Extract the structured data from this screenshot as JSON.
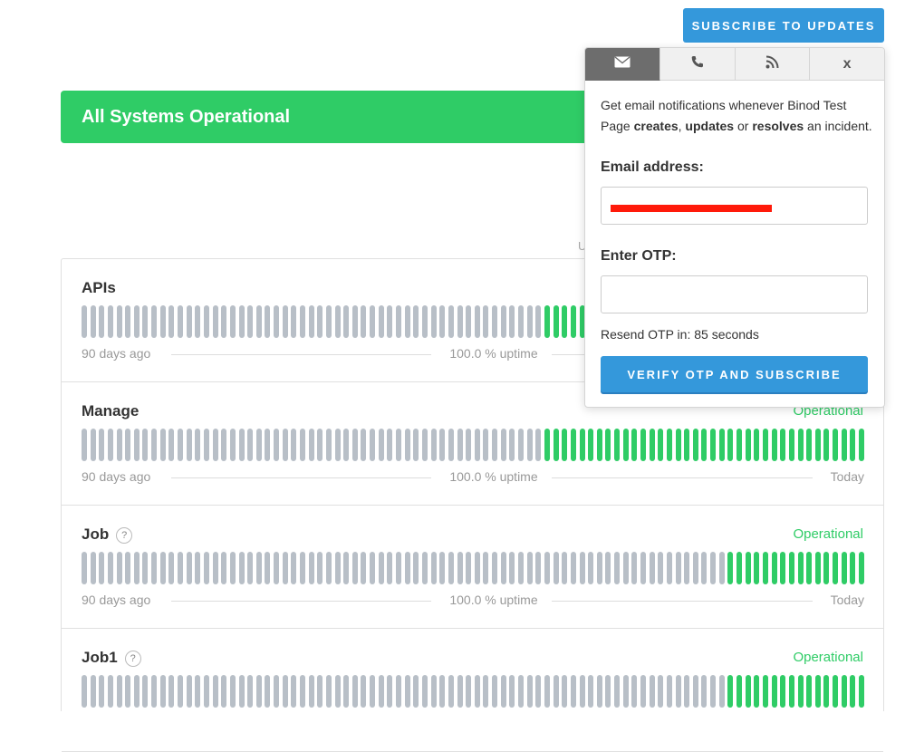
{
  "header": {
    "subscribe_label": "SUBSCRIBE TO UPDATES"
  },
  "banner": {
    "text": "All Systems Operational"
  },
  "uptime_hint": "U",
  "colors": {
    "operational": "#2fcc66",
    "no_data": "#b8bfc7",
    "accent": "#3498db",
    "active_tab": "#6d6d6d"
  },
  "components": [
    {
      "name": "APIs",
      "status": "",
      "has_help": false,
      "legend_left": "90 days ago",
      "legend_mid": "100.0 % uptime",
      "legend_right": "",
      "total_bars": 90,
      "nodata_bars": 53
    },
    {
      "name": "Manage",
      "status": "Operational",
      "has_help": false,
      "legend_left": "90 days ago",
      "legend_mid": "100.0 % uptime",
      "legend_right": "Today",
      "total_bars": 90,
      "nodata_bars": 53
    },
    {
      "name": "Job",
      "status": "Operational",
      "has_help": true,
      "legend_left": "90 days ago",
      "legend_mid": "100.0 % uptime",
      "legend_right": "Today",
      "total_bars": 90,
      "nodata_bars": 74
    },
    {
      "name": "Job1",
      "status": "Operational",
      "has_help": true,
      "legend_left": "",
      "legend_mid": "",
      "legend_right": "",
      "total_bars": 90,
      "nodata_bars": 74
    }
  ],
  "popup": {
    "tabs": [
      {
        "icon": "envelope-icon",
        "active": true
      },
      {
        "icon": "phone-icon",
        "active": false
      },
      {
        "icon": "rss-icon",
        "active": false
      },
      {
        "icon": "close-icon",
        "active": false,
        "text": "x"
      }
    ],
    "desc_1": "Get email notifications whenever Binod Test Page ",
    "desc_creates": "creates",
    "desc_2": ", ",
    "desc_updates": "updates",
    "desc_3": " or ",
    "desc_resolves": "resolves",
    "desc_4": " an incident.",
    "email_label": "Email address:",
    "email_value": "",
    "otp_label": "Enter OTP:",
    "otp_value": "",
    "resend_text": "Resend OTP in: 85 seconds",
    "verify_label": "VERIFY OTP AND SUBSCRIBE"
  }
}
